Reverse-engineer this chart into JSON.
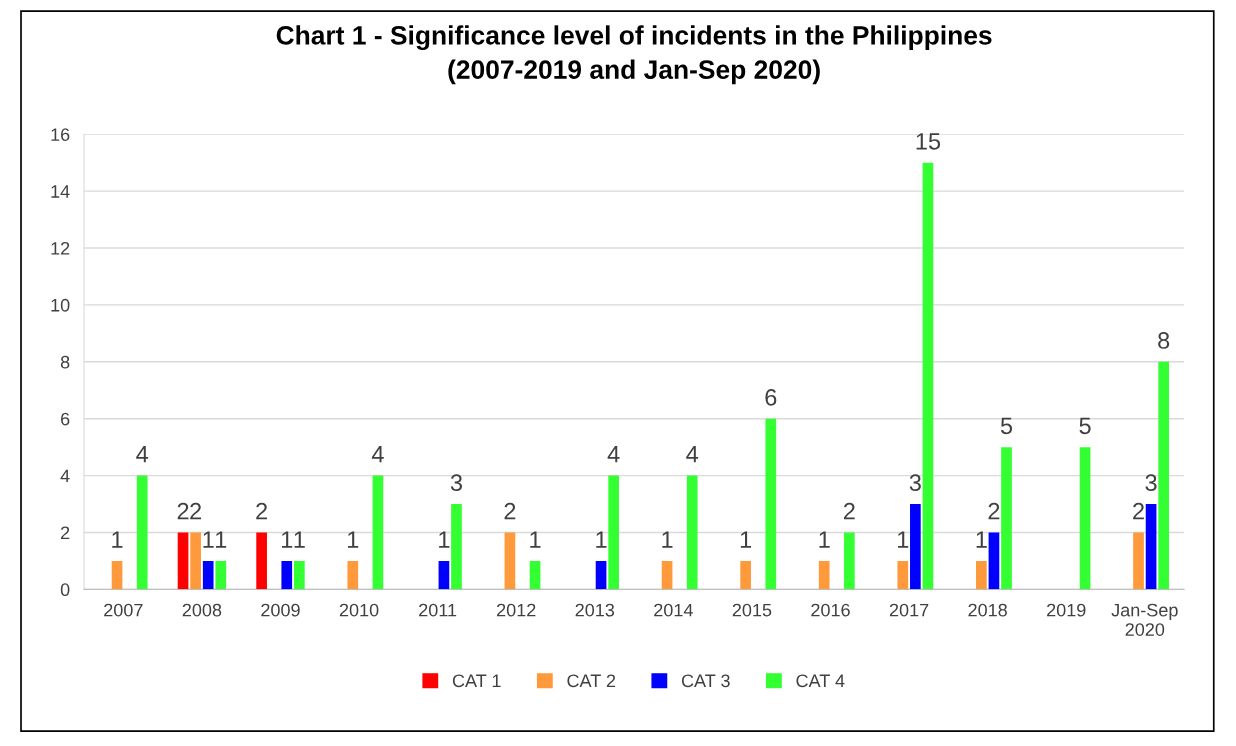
{
  "chart_data": {
    "type": "bar",
    "title": "Chart 1 - Significance level of incidents in the Philippines\n(2007-2019 and Jan-Sep 2020)",
    "categories": [
      "2007",
      "2008",
      "2009",
      "2010",
      "2011",
      "2012",
      "2013",
      "2014",
      "2015",
      "2016",
      "2017",
      "2018",
      "2019",
      "Jan-Sep 2020"
    ],
    "series": [
      {
        "name": "CAT 1",
        "color": "#ff0000",
        "values": [
          null,
          2,
          2,
          null,
          null,
          null,
          null,
          null,
          null,
          null,
          null,
          null,
          null,
          null
        ]
      },
      {
        "name": "CAT 2",
        "color": "#ff9a3c",
        "values": [
          1,
          2,
          null,
          1,
          null,
          2,
          null,
          1,
          1,
          1,
          1,
          1,
          null,
          2
        ]
      },
      {
        "name": "CAT 3",
        "color": "#0000ff",
        "values": [
          null,
          1,
          1,
          null,
          1,
          null,
          1,
          null,
          null,
          null,
          3,
          2,
          null,
          3
        ]
      },
      {
        "name": "CAT 4",
        "color": "#33ff33",
        "values": [
          4,
          1,
          1,
          4,
          3,
          1,
          4,
          4,
          6,
          2,
          15,
          5,
          5,
          8
        ]
      }
    ],
    "ylim": [
      0,
      16
    ],
    "yticks": [
      0,
      2,
      4,
      6,
      8,
      10,
      12,
      14,
      16
    ],
    "grid": "y",
    "legend": "bottom",
    "data_labels": true
  }
}
